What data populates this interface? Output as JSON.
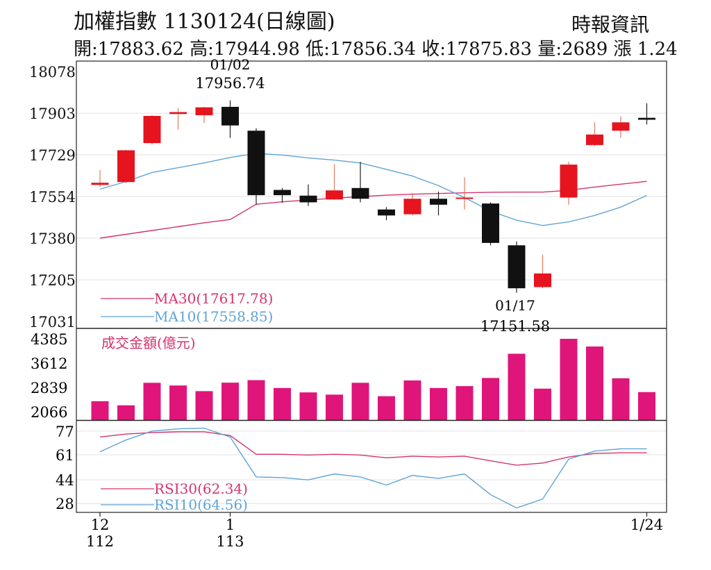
{
  "header": {
    "title": "加權指數 1130124(日線圖)",
    "source": "時報資訊",
    "quote": "開:17883.62 高:17944.98 低:17856.34 收:17875.83 量:2689 漲 1.24"
  },
  "colors": {
    "up": "#e5141e",
    "down": "#111111",
    "ma30": "#d4336e",
    "ma10": "#5fa4d4",
    "volume": "#e0157a",
    "grid": "#e2e2e2"
  },
  "chart_data": [
    {
      "type": "candlestick",
      "ylim": [
        17031,
        18078
      ],
      "y_ticks": [
        "18078",
        "17903",
        "17729",
        "17554",
        "17380",
        "17205",
        "17031"
      ],
      "x_ticks": [
        {
          "index": 0,
          "top": "12",
          "bottom": "112"
        },
        {
          "index": 5,
          "top": "1",
          "bottom": "113"
        },
        {
          "index": 21,
          "top": "1/24",
          "bottom": ""
        }
      ],
      "annotations": [
        {
          "index": 5,
          "date": "01/02",
          "value": "17956.74",
          "position": "above"
        },
        {
          "index": 16,
          "date": "01/17",
          "value": "17151.58",
          "position": "below"
        }
      ],
      "candles": [
        {
          "open": 17603,
          "high": 17665,
          "low": 17595,
          "close": 17612
        },
        {
          "open": 17615,
          "high": 17750,
          "low": 17610,
          "close": 17748
        },
        {
          "open": 17778,
          "high": 17895,
          "low": 17772,
          "close": 17892
        },
        {
          "open": 17900,
          "high": 17925,
          "low": 17835,
          "close": 17908
        },
        {
          "open": 17895,
          "high": 17930,
          "low": 17862,
          "close": 17928
        },
        {
          "open": 17930,
          "high": 17957,
          "low": 17800,
          "close": 17852
        },
        {
          "open": 17830,
          "high": 17840,
          "low": 17520,
          "close": 17560
        },
        {
          "open": 17582,
          "high": 17590,
          "low": 17528,
          "close": 17560
        },
        {
          "open": 17558,
          "high": 17605,
          "low": 17515,
          "close": 17530
        },
        {
          "open": 17542,
          "high": 17690,
          "low": 17540,
          "close": 17580
        },
        {
          "open": 17590,
          "high": 17700,
          "low": 17530,
          "close": 17545
        },
        {
          "open": 17500,
          "high": 17510,
          "low": 17455,
          "close": 17475
        },
        {
          "open": 17480,
          "high": 17570,
          "low": 17475,
          "close": 17545
        },
        {
          "open": 17545,
          "high": 17575,
          "low": 17475,
          "close": 17520
        },
        {
          "open": 17545,
          "high": 17635,
          "low": 17500,
          "close": 17550
        },
        {
          "open": 17525,
          "high": 17530,
          "low": 17350,
          "close": 17360
        },
        {
          "open": 17350,
          "high": 17366,
          "low": 17151,
          "close": 17170
        },
        {
          "open": 17175,
          "high": 17310,
          "low": 17170,
          "close": 17232
        },
        {
          "open": 17550,
          "high": 17700,
          "low": 17520,
          "close": 17688
        },
        {
          "open": 17770,
          "high": 17865,
          "low": 17765,
          "close": 17814
        },
        {
          "open": 17830,
          "high": 17890,
          "low": 17800,
          "close": 17865
        },
        {
          "open": 17884,
          "high": 17945,
          "low": 17856,
          "close": 17876
        }
      ],
      "series": [
        {
          "name": "MA30(17617.78)",
          "color": "#d4336e",
          "values": [
            17380,
            17396,
            17412,
            17428,
            17444,
            17458,
            17522,
            17532,
            17540,
            17547,
            17554,
            17560,
            17564,
            17567,
            17570,
            17572,
            17573,
            17573,
            17580,
            17594,
            17606,
            17618
          ]
        },
        {
          "name": "MA10(17558.85)",
          "color": "#5fa4d4",
          "values": [
            17585,
            17617,
            17655,
            17675,
            17695,
            17718,
            17735,
            17728,
            17716,
            17707,
            17695,
            17668,
            17640,
            17600,
            17550,
            17493,
            17455,
            17433,
            17448,
            17475,
            17510,
            17559
          ]
        }
      ]
    },
    {
      "type": "bar",
      "title": "成交金額(億元)",
      "ylim": [
        2066,
        4385
      ],
      "y_ticks": [
        "4385",
        "3612",
        "2839",
        "2066"
      ],
      "values": [
        2400,
        2270,
        2986,
        2900,
        2720,
        2990,
        3070,
        2820,
        2680,
        2610,
        2986,
        2560,
        3060,
        2820,
        2880,
        3140,
        3910,
        2800,
        4385,
        4140,
        3130,
        2690
      ]
    },
    {
      "type": "line",
      "ylim": [
        22,
        84
      ],
      "y_ticks": [
        "77",
        "61",
        "44",
        "28"
      ],
      "series": [
        {
          "name": "RSI30(62.34)",
          "color": "#d4336e",
          "values": [
            73,
            75,
            76,
            76.5,
            76.5,
            74,
            61.3,
            61.3,
            60.8,
            61.3,
            60.8,
            58.9,
            60,
            59.5,
            60,
            56.9,
            53.9,
            55.4,
            59.5,
            61.9,
            62.3,
            62.3
          ]
        },
        {
          "name": "RSI10(64.56)",
          "color": "#5fa4d4",
          "values": [
            63,
            71,
            77,
            78.5,
            79,
            73,
            46,
            45.5,
            44,
            48,
            46,
            40.5,
            47,
            45,
            48,
            34,
            25,
            31,
            58,
            63.5,
            65,
            65
          ]
        }
      ]
    }
  ]
}
